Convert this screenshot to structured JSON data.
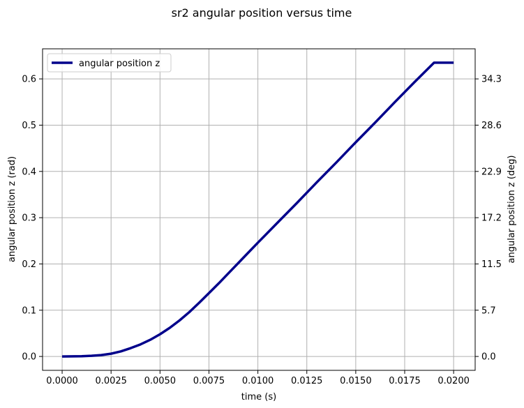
{
  "chart_data": {
    "type": "line",
    "title": "sr2 angular position versus time",
    "xlabel": "time (s)",
    "ylabel": "angular position z (rad)",
    "ylabel_right": "angular position z (deg)",
    "xlim": [
      -0.001,
      0.0211
    ],
    "ylim": [
      -0.03,
      0.665
    ],
    "x_ticks": [
      0.0,
      0.0025,
      0.005,
      0.0075,
      0.01,
      0.0125,
      0.015,
      0.0175,
      0.02
    ],
    "x_tick_labels": [
      "0.0000",
      "0.0025",
      "0.0050",
      "0.0075",
      "0.0100",
      "0.0125",
      "0.0150",
      "0.0175",
      "0.0200"
    ],
    "y_ticks": [
      0.0,
      0.1,
      0.2,
      0.3,
      0.4,
      0.5,
      0.6
    ],
    "y_tick_labels": [
      "0.0",
      "0.1",
      "0.2",
      "0.3",
      "0.4",
      "0.5",
      "0.6"
    ],
    "y_right_ticks": [
      0.0,
      5.7,
      11.5,
      17.2,
      22.9,
      28.6,
      34.3
    ],
    "y_right_tick_labels": [
      "0.0",
      "5.7",
      "11.5",
      "17.2",
      "22.9",
      "28.6",
      "34.3"
    ],
    "grid": true,
    "legend_position": "top-left",
    "series": [
      {
        "name": "angular position z",
        "color": "#00008b",
        "x": [
          0.0,
          0.001,
          0.0015,
          0.002,
          0.0025,
          0.003,
          0.0035,
          0.004,
          0.0045,
          0.005,
          0.0055,
          0.006,
          0.0065,
          0.007,
          0.0075,
          0.008,
          0.0085,
          0.009,
          0.0095,
          0.01,
          0.011,
          0.012,
          0.013,
          0.014,
          0.015,
          0.016,
          0.017,
          0.018,
          0.019,
          0.02
        ],
        "y": [
          0.0,
          0.0005,
          0.0015,
          0.003,
          0.006,
          0.011,
          0.018,
          0.026,
          0.036,
          0.048,
          0.062,
          0.078,
          0.096,
          0.116,
          0.137,
          0.158,
          0.18,
          0.202,
          0.224,
          0.246,
          0.289,
          0.332,
          0.376,
          0.419,
          0.463,
          0.506,
          0.55,
          0.593,
          0.635,
          0.635
        ]
      }
    ]
  }
}
